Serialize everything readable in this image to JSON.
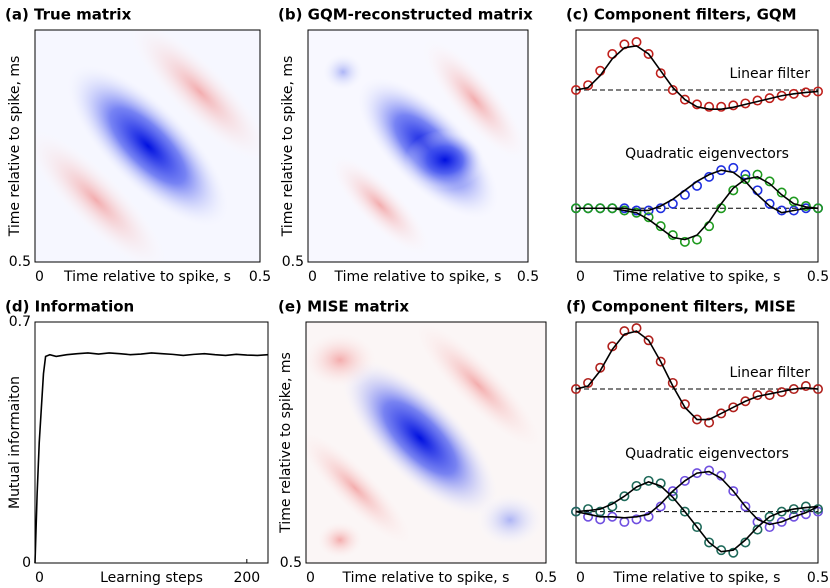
{
  "chart_data": [
    {
      "type": "heatmap",
      "title": "(a) True matrix",
      "xlabel": "Time relative to spike, s",
      "ylabel": "Time relative to spike, ms",
      "xlim": [
        0,
        0.5
      ],
      "xticks": [
        0,
        0.5
      ],
      "ylim": [
        0.5,
        0
      ],
      "yticks": [
        0.5
      ]
    },
    {
      "type": "heatmap",
      "title": "(b) GQM-reconstructed matrix",
      "xlabel": "Time relative to spike, s",
      "ylabel": "Time relative to spike, ms",
      "xlim": [
        0,
        0.5
      ],
      "xticks": [
        0,
        0.5
      ],
      "ylim": [
        0.5,
        0
      ],
      "yticks": [
        0.5
      ]
    },
    {
      "type": "line",
      "title": "(c) Component filters, GQM",
      "annotation": "Linear filter",
      "zero_line": true,
      "x": [
        0,
        0.025,
        0.05,
        0.075,
        0.1,
        0.125,
        0.15,
        0.175,
        0.2,
        0.225,
        0.25,
        0.275,
        0.3,
        0.325,
        0.35,
        0.375,
        0.4,
        0.425,
        0.45,
        0.475,
        0.5
      ],
      "xlim": [
        0,
        0.5
      ],
      "ylim": [
        -1.25,
        1.25
      ],
      "series": [
        {
          "color": "#c0201c",
          "marker": "circle",
          "values": [
            0,
            0.1,
            0.4,
            0.75,
            0.95,
            1.0,
            0.75,
            0.35,
            0.0,
            -0.2,
            -0.3,
            -0.35,
            -0.35,
            -0.32,
            -0.28,
            -0.22,
            -0.17,
            -0.12,
            -0.08,
            -0.05,
            -0.03
          ]
        },
        {
          "color": "#000000",
          "values": [
            0,
            0.05,
            0.3,
            0.65,
            0.88,
            0.92,
            0.75,
            0.4,
            0.05,
            -0.2,
            -0.35,
            -0.4,
            -0.4,
            -0.36,
            -0.3,
            -0.24,
            -0.18,
            -0.12,
            -0.08,
            -0.05,
            -0.03
          ]
        }
      ]
    },
    {
      "type": "line",
      "annotation": "Quadratic eigenvectors",
      "zero_line": true,
      "xlabel": "Time relative to spike, s",
      "x": [
        0,
        0.025,
        0.05,
        0.075,
        0.1,
        0.125,
        0.15,
        0.175,
        0.2,
        0.225,
        0.25,
        0.275,
        0.3,
        0.325,
        0.35,
        0.375,
        0.4,
        0.425,
        0.45,
        0.475,
        0.5
      ],
      "xlim": [
        0,
        0.5
      ],
      "xticks": [
        0,
        0.5
      ],
      "ylim": [
        -1.2,
        1.3
      ],
      "series": [
        {
          "color": "#1f2fe0",
          "marker": "circle",
          "values": [
            0,
            0,
            0,
            0,
            0,
            -0.05,
            -0.05,
            0,
            0.1,
            0.3,
            0.5,
            0.7,
            0.85,
            0.9,
            0.75,
            0.4,
            0.1,
            -0.05,
            -0.05,
            0,
            0
          ]
        },
        {
          "color": "#1f9a1f",
          "marker": "circle",
          "values": [
            0,
            0,
            0,
            0,
            -0.05,
            -0.1,
            -0.2,
            -0.4,
            -0.6,
            -0.75,
            -0.7,
            -0.4,
            0,
            0.4,
            0.65,
            0.75,
            0.6,
            0.35,
            0.15,
            0.05,
            0
          ]
        },
        {
          "color": "#000000",
          "values": [
            0,
            0,
            0,
            0,
            0,
            -0.05,
            -0.05,
            0.05,
            0.2,
            0.4,
            0.6,
            0.75,
            0.85,
            0.8,
            0.6,
            0.3,
            0.05,
            -0.1,
            -0.05,
            0,
            0
          ]
        },
        {
          "color": "#000000",
          "values": [
            0,
            0,
            0,
            0,
            -0.05,
            -0.1,
            -0.25,
            -0.45,
            -0.65,
            -0.7,
            -0.6,
            -0.3,
            0.1,
            0.45,
            0.65,
            0.7,
            0.55,
            0.3,
            0.1,
            0.03,
            0
          ]
        }
      ]
    },
    {
      "type": "line",
      "title": "(d) Information",
      "xlabel": "Learning steps",
      "ylabel": "Mutual informaiton",
      "x": [
        0,
        2,
        4,
        6,
        8,
        10,
        14,
        20,
        30,
        40,
        50,
        60,
        70,
        80,
        90,
        100,
        110,
        120,
        130,
        140,
        150,
        160,
        170,
        180,
        190,
        200,
        210,
        220
      ],
      "xlim": [
        0,
        220
      ],
      "xticks": [
        0,
        200
      ],
      "ylim": [
        0,
        0.7
      ],
      "yticks": [
        0,
        0.7
      ],
      "series": [
        {
          "color": "#000000",
          "values": [
            0,
            0.2,
            0.35,
            0.45,
            0.55,
            0.6,
            0.605,
            0.6,
            0.605,
            0.608,
            0.61,
            0.607,
            0.61,
            0.608,
            0.605,
            0.607,
            0.61,
            0.608,
            0.606,
            0.603,
            0.606,
            0.608,
            0.605,
            0.603,
            0.606,
            0.604,
            0.603,
            0.605
          ]
        }
      ]
    },
    {
      "type": "heatmap",
      "title": "(e) MISE matrix",
      "xlabel": "Time relative to spike, s",
      "ylabel": "Time relative to spike, ms",
      "xlim": [
        0,
        0.5
      ],
      "xticks": [
        0,
        0.5
      ],
      "ylim": [
        0.5,
        0
      ],
      "yticks": [
        0.5
      ]
    },
    {
      "type": "line",
      "title": "(f) Component filters, MISE",
      "annotation": "Linear filter",
      "zero_line": true,
      "x": [
        0,
        0.025,
        0.05,
        0.075,
        0.1,
        0.125,
        0.15,
        0.175,
        0.2,
        0.225,
        0.25,
        0.275,
        0.3,
        0.325,
        0.35,
        0.375,
        0.4,
        0.425,
        0.45,
        0.475,
        0.5
      ],
      "xlim": [
        0,
        0.5
      ],
      "ylim": [
        -1,
        1.1
      ],
      "series": [
        {
          "color": "#b0201c",
          "marker": "circle",
          "values": [
            0,
            0.1,
            0.35,
            0.7,
            0.95,
            1.0,
            0.8,
            0.45,
            0.1,
            -0.25,
            -0.5,
            -0.55,
            -0.4,
            -0.3,
            -0.2,
            -0.1,
            -0.1,
            -0.05,
            0.0,
            0.05,
            0.0
          ]
        },
        {
          "color": "#000000",
          "values": [
            0,
            0.05,
            0.3,
            0.65,
            0.9,
            0.95,
            0.8,
            0.45,
            0.05,
            -0.3,
            -0.5,
            -0.5,
            -0.4,
            -0.3,
            -0.2,
            -0.12,
            -0.08,
            -0.04,
            0.0,
            0.02,
            0.0
          ]
        }
      ]
    },
    {
      "type": "line",
      "annotation": "Quadratic eigenvectors",
      "zero_line": true,
      "xlabel": "Time relative to spike, s",
      "x": [
        0,
        0.025,
        0.05,
        0.075,
        0.1,
        0.125,
        0.15,
        0.175,
        0.2,
        0.225,
        0.25,
        0.275,
        0.3,
        0.325,
        0.35,
        0.375,
        0.4,
        0.425,
        0.45,
        0.475,
        0.5
      ],
      "xlim": [
        0,
        0.5
      ],
      "xticks": [
        0,
        0.5
      ],
      "ylim": [
        -1,
        1.2
      ],
      "series": [
        {
          "color": "#7050e0",
          "marker": "circle",
          "values": [
            0,
            -0.1,
            -0.15,
            -0.1,
            -0.2,
            -0.15,
            -0.1,
            0.1,
            0.4,
            0.6,
            0.75,
            0.8,
            0.7,
            0.4,
            0.1,
            -0.2,
            -0.3,
            -0.2,
            -0.1,
            -0.05,
            0
          ]
        },
        {
          "color": "#1f6a5a",
          "marker": "circle",
          "values": [
            0,
            0.05,
            0.0,
            0.1,
            0.3,
            0.5,
            0.6,
            0.55,
            0.3,
            0.0,
            -0.3,
            -0.6,
            -0.75,
            -0.8,
            -0.6,
            -0.35,
            -0.1,
            0.0,
            0.05,
            0.1,
            0.05
          ]
        },
        {
          "color": "#000000",
          "values": [
            0,
            -0.05,
            -0.1,
            -0.1,
            -0.12,
            -0.1,
            -0.05,
            0.15,
            0.4,
            0.6,
            0.75,
            0.78,
            0.65,
            0.4,
            0.1,
            -0.15,
            -0.25,
            -0.2,
            -0.1,
            -0.02,
            0.1
          ]
        },
        {
          "color": "#000000",
          "values": [
            0,
            0.02,
            0.05,
            0.15,
            0.3,
            0.48,
            0.58,
            0.5,
            0.28,
            0.0,
            -0.3,
            -0.6,
            -0.78,
            -0.75,
            -0.55,
            -0.3,
            -0.1,
            0.0,
            0.05,
            0.08,
            0.1
          ]
        }
      ]
    }
  ]
}
